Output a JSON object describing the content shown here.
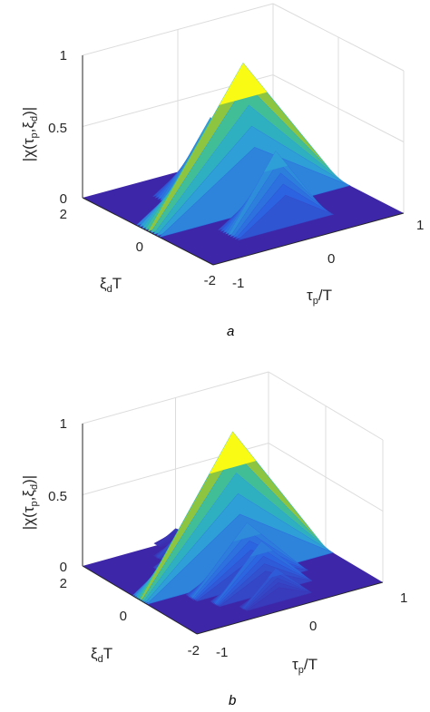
{
  "colors": {
    "surface_low": "#3e26a8",
    "surface_mid": "#2f9fd7",
    "surface_high": "#f9fb15",
    "axis": "#262626",
    "grid": "#dcdcdc"
  },
  "chart_data": [
    {
      "type": "surface3d",
      "caption": "a",
      "zlabel": {
        "prefix": "|χ(τ",
        "sub1": "p",
        "mid": ",ξ",
        "sub2": "d",
        "suffix": ")|"
      },
      "xlabel": {
        "main": "ξ",
        "sub": "d",
        "suffix": "T"
      },
      "ylabel": {
        "main": "τ",
        "sub": "p",
        "suffix": "/T"
      },
      "xlim": [
        -2,
        2
      ],
      "ylim": [
        -1,
        1
      ],
      "zlim": [
        0,
        1
      ],
      "xticks": [
        "-2",
        "0",
        "2"
      ],
      "yticks": [
        "-1",
        "0",
        "1"
      ],
      "zticks": [
        "0",
        "0.5",
        "1"
      ],
      "grid": true,
      "ridges": [
        {
          "xi_center": 0,
          "tau_halfwidth": 1.0,
          "peak": 1.0,
          "xi_halfwidth": 0.35
        },
        {
          "xi_center": -1,
          "tau_halfwidth": 0.5,
          "peak": 0.5,
          "xi_halfwidth": 0.3
        },
        {
          "xi_center": 1,
          "tau_halfwidth": 0.5,
          "peak": 0.5,
          "xi_halfwidth": 0.3
        }
      ]
    },
    {
      "type": "surface3d",
      "caption": "b",
      "zlabel": {
        "prefix": "|χ(τ",
        "sub1": "p",
        "mid": ",ξ",
        "sub2": "d",
        "suffix": ")|"
      },
      "xlabel": {
        "main": "ξ",
        "sub": "d",
        "suffix": "T"
      },
      "ylabel": {
        "main": "τ",
        "sub": "p",
        "suffix": "/T"
      },
      "xlim": [
        -2,
        2
      ],
      "ylim": [
        -1,
        1
      ],
      "zlim": [
        0,
        1
      ],
      "xticks": [
        "-2",
        "0",
        "2"
      ],
      "yticks": [
        "-1",
        "0",
        "1"
      ],
      "zticks": [
        "0",
        "0.5",
        "1"
      ],
      "grid": true,
      "ridges": [
        {
          "xi_center": 0,
          "tau_halfwidth": 1.0,
          "peak": 1.0,
          "xi_halfwidth": 0.25
        },
        {
          "xi_center": -0.5,
          "tau_halfwidth": 0.6,
          "peak": 0.42,
          "xi_halfwidth": 0.18
        },
        {
          "xi_center": 0.5,
          "tau_halfwidth": 0.6,
          "peak": 0.42,
          "xi_halfwidth": 0.18
        },
        {
          "xi_center": -1.0,
          "tau_halfwidth": 0.5,
          "peak": 0.35,
          "xi_halfwidth": 0.15
        },
        {
          "xi_center": 1.0,
          "tau_halfwidth": 0.5,
          "peak": 0.35,
          "xi_halfwidth": 0.15
        },
        {
          "xi_center": -1.5,
          "tau_halfwidth": 0.35,
          "peak": 0.22,
          "xi_halfwidth": 0.12
        },
        {
          "xi_center": 1.5,
          "tau_halfwidth": 0.35,
          "peak": 0.2,
          "xi_halfwidth": 0.12
        },
        {
          "xi_center": 2.0,
          "tau_halfwidth": 0.2,
          "peak": 0.08,
          "xi_halfwidth": 0.1
        }
      ]
    }
  ]
}
